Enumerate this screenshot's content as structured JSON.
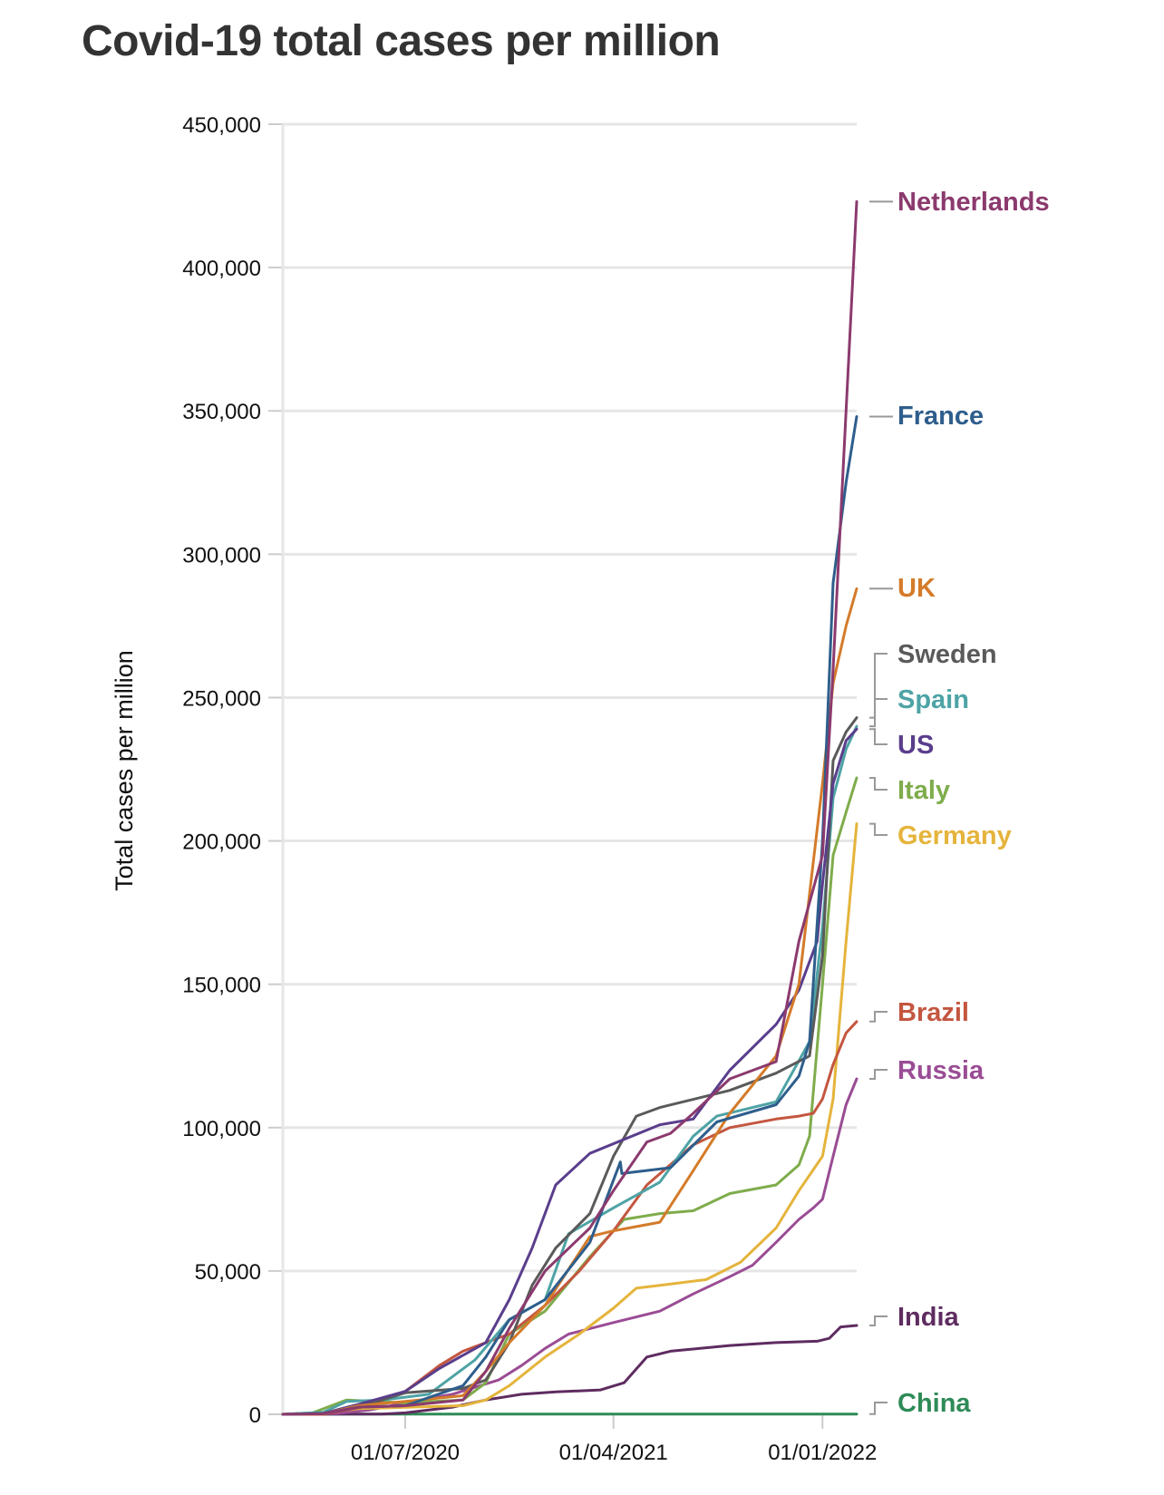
{
  "chart_data": {
    "type": "line",
    "title": "Covid-19 total cases per million",
    "xlabel": "",
    "ylabel": "Total cases per million",
    "ylim": [
      0,
      450000
    ],
    "xlim": [
      "2020-01-22",
      "2022-02-15"
    ],
    "yticks": [
      0,
      50000,
      100000,
      150000,
      200000,
      250000,
      300000,
      350000,
      400000,
      450000
    ],
    "ytick_labels": [
      "0",
      "50,000",
      "100,000",
      "150,000",
      "200,000",
      "250,000",
      "300,000",
      "350,000",
      "400,000",
      "450,000"
    ],
    "xticks": [
      "2020-07-01",
      "2021-04-01",
      "2022-01-01"
    ],
    "xtick_labels": [
      "01/07/2020",
      "01/04/2021",
      "01/01/2022"
    ],
    "grid": "horizontal",
    "legend": "direct labels at line ends (right)",
    "series": [
      {
        "name": "Netherlands",
        "color": "#8b3a6e",
        "x": [
          "2020-01-22",
          "2020-03-15",
          "2020-05-01",
          "2020-07-01",
          "2020-09-15",
          "2020-10-15",
          "2020-11-15",
          "2021-01-01",
          "2021-03-01",
          "2021-04-01",
          "2021-05-15",
          "2021-06-15",
          "2021-07-15",
          "2021-09-01",
          "2021-11-01",
          "2021-12-01",
          "2022-01-01",
          "2022-01-15",
          "2022-02-01",
          "2022-02-15"
        ],
        "y": [
          0,
          200,
          2500,
          3000,
          5000,
          15000,
          30000,
          50000,
          65000,
          78000,
          95000,
          98000,
          105000,
          117000,
          123000,
          165000,
          195000,
          260000,
          350000,
          423000
        ]
      },
      {
        "name": "France",
        "color": "#2e5e8c",
        "x": [
          "2020-01-22",
          "2020-03-15",
          "2020-05-01",
          "2020-07-01",
          "2020-09-15",
          "2020-10-15",
          "2020-11-15",
          "2021-01-01",
          "2021-03-01",
          "2021-04-10",
          "2021-04-12",
          "2021-06-15",
          "2021-08-15",
          "2021-11-01",
          "2021-12-01",
          "2021-12-15",
          "2022-01-01",
          "2022-01-15",
          "2022-02-01",
          "2022-02-15"
        ],
        "y": [
          0,
          300,
          2500,
          3000,
          10000,
          20000,
          33000,
          40000,
          60000,
          88000,
          84000,
          86000,
          102000,
          108000,
          118000,
          130000,
          200000,
          290000,
          325000,
          348000
        ]
      },
      {
        "name": "UK",
        "color": "#d47b2a",
        "x": [
          "2020-01-22",
          "2020-03-15",
          "2020-05-01",
          "2020-07-01",
          "2020-09-15",
          "2020-10-15",
          "2020-11-15",
          "2021-01-01",
          "2021-03-01",
          "2021-04-01",
          "2021-06-01",
          "2021-07-15",
          "2021-09-01",
          "2021-11-01",
          "2021-12-01",
          "2022-01-01",
          "2022-01-15",
          "2022-02-01",
          "2022-02-15"
        ],
        "y": [
          0,
          200,
          3000,
          4500,
          6500,
          15000,
          25000,
          38000,
          62000,
          64000,
          67000,
          85000,
          105000,
          125000,
          150000,
          220000,
          255000,
          275000,
          288000
        ]
      },
      {
        "name": "Sweden",
        "color": "#5a5a5a",
        "x": [
          "2020-01-22",
          "2020-03-15",
          "2020-05-01",
          "2020-07-01",
          "2020-09-15",
          "2020-10-15",
          "2020-11-15",
          "2020-12-15",
          "2021-01-15",
          "2021-03-01",
          "2021-04-01",
          "2021-05-01",
          "2021-06-01",
          "2021-09-01",
          "2021-11-01",
          "2021-12-15",
          "2022-01-01",
          "2022-01-15",
          "2022-02-01",
          "2022-02-15"
        ],
        "y": [
          0,
          300,
          2500,
          7500,
          9000,
          12000,
          25000,
          45000,
          58000,
          70000,
          90000,
          104000,
          107000,
          113000,
          119000,
          125000,
          160000,
          228000,
          238000,
          243000
        ]
      },
      {
        "name": "Spain",
        "color": "#4ea3a5",
        "x": [
          "2020-01-22",
          "2020-03-15",
          "2020-04-15",
          "2020-06-01",
          "2020-08-01",
          "2020-10-01",
          "2020-11-15",
          "2021-01-01",
          "2021-02-01",
          "2021-04-01",
          "2021-06-01",
          "2021-07-15",
          "2021-08-15",
          "2021-11-01",
          "2021-12-15",
          "2022-01-01",
          "2022-01-15",
          "2022-02-01",
          "2022-02-15"
        ],
        "y": [
          0,
          700,
          4500,
          5000,
          7000,
          19000,
          33000,
          40000,
          63000,
          72000,
          81000,
          97000,
          104000,
          109000,
          130000,
          170000,
          215000,
          232000,
          240000
        ]
      },
      {
        "name": "US",
        "color": "#5a3e8c",
        "x": [
          "2020-01-22",
          "2020-03-15",
          "2020-05-01",
          "2020-07-01",
          "2020-08-15",
          "2020-10-15",
          "2020-11-15",
          "2020-12-15",
          "2021-01-15",
          "2021-03-01",
          "2021-06-01",
          "2021-07-15",
          "2021-09-01",
          "2021-11-01",
          "2021-12-01",
          "2021-12-25",
          "2022-01-01",
          "2022-01-15",
          "2022-02-01",
          "2022-02-15"
        ],
        "y": [
          0,
          300,
          3500,
          8000,
          16000,
          25000,
          40000,
          58000,
          80000,
          91000,
          101000,
          103000,
          120000,
          136000,
          148000,
          165000,
          185000,
          220000,
          235000,
          239000
        ]
      },
      {
        "name": "Italy",
        "color": "#7fac4c",
        "x": [
          "2020-01-22",
          "2020-03-01",
          "2020-04-15",
          "2020-07-01",
          "2020-09-15",
          "2020-10-15",
          "2020-11-15",
          "2021-01-01",
          "2021-03-01",
          "2021-04-15",
          "2021-06-01",
          "2021-07-15",
          "2021-09-01",
          "2021-11-01",
          "2021-12-01",
          "2021-12-15",
          "2022-01-01",
          "2022-01-15",
          "2022-02-01",
          "2022-02-15"
        ],
        "y": [
          0,
          500,
          5000,
          4000,
          5000,
          11000,
          28000,
          36000,
          55000,
          68000,
          70000,
          71000,
          77000,
          80000,
          87000,
          97000,
          150000,
          195000,
          210000,
          222000
        ]
      },
      {
        "name": "Germany",
        "color": "#e5b43c",
        "x": [
          "2020-01-22",
          "2020-03-15",
          "2020-05-01",
          "2020-09-15",
          "2020-10-15",
          "2020-11-15",
          "2021-01-01",
          "2021-02-15",
          "2021-04-01",
          "2021-05-01",
          "2021-06-01",
          "2021-08-01",
          "2021-09-15",
          "2021-11-01",
          "2021-12-01",
          "2022-01-01",
          "2022-01-15",
          "2022-02-01",
          "2022-02-15"
        ],
        "y": [
          0,
          500,
          2000,
          3000,
          5000,
          10000,
          20000,
          28000,
          37000,
          44000,
          45000,
          47000,
          53000,
          65000,
          78000,
          90000,
          110000,
          165000,
          206000
        ]
      },
      {
        "name": "Brazil",
        "color": "#c45640",
        "x": [
          "2020-01-22",
          "2020-03-15",
          "2020-05-15",
          "2020-07-01",
          "2020-08-15",
          "2020-09-15",
          "2020-10-15",
          "2020-11-15",
          "2021-01-01",
          "2021-02-15",
          "2021-04-01",
          "2021-05-15",
          "2021-07-15",
          "2021-09-01",
          "2021-11-01",
          "2021-12-01",
          "2021-12-20",
          "2022-01-01",
          "2022-01-15",
          "2022-02-01",
          "2022-02-15"
        ],
        "y": [
          0,
          0,
          3000,
          8000,
          17000,
          22000,
          25000,
          28000,
          38000,
          50000,
          64000,
          80000,
          94000,
          100000,
          103000,
          104000,
          105000,
          110000,
          122000,
          133000,
          137000
        ]
      },
      {
        "name": "Russia",
        "color": "#9a4c94",
        "x": [
          "2020-01-22",
          "2020-04-01",
          "2020-05-15",
          "2020-07-01",
          "2020-09-01",
          "2020-11-01",
          "2020-12-01",
          "2021-01-01",
          "2021-02-01",
          "2021-04-01",
          "2021-06-01",
          "2021-07-15",
          "2021-09-01",
          "2021-10-01",
          "2021-11-01",
          "2021-12-01",
          "2021-12-20",
          "2022-01-01",
          "2022-01-15",
          "2022-02-01",
          "2022-02-15"
        ],
        "y": [
          0,
          300,
          1500,
          4000,
          7000,
          12000,
          17000,
          23000,
          28000,
          32000,
          36000,
          42000,
          48000,
          52000,
          60000,
          68000,
          72000,
          75000,
          90000,
          108000,
          117000
        ]
      },
      {
        "name": "India",
        "color": "#5e2c60",
        "x": [
          "2020-01-22",
          "2020-06-01",
          "2020-07-01",
          "2020-09-01",
          "2020-10-15",
          "2020-12-01",
          "2021-01-15",
          "2021-03-15",
          "2021-04-15",
          "2021-05-15",
          "2021-06-15",
          "2021-09-01",
          "2021-11-01",
          "2021-12-25",
          "2022-01-10",
          "2022-01-25",
          "2022-02-15"
        ],
        "y": [
          0,
          100,
          500,
          2500,
          5000,
          7000,
          7800,
          8500,
          11000,
          20000,
          22000,
          24000,
          25000,
          25500,
          26500,
          30500,
          31000
        ]
      },
      {
        "name": "China",
        "color": "#2e8b57",
        "x": [
          "2020-01-22",
          "2020-03-01",
          "2022-02-15"
        ],
        "y": [
          0,
          55,
          75
        ]
      }
    ]
  }
}
